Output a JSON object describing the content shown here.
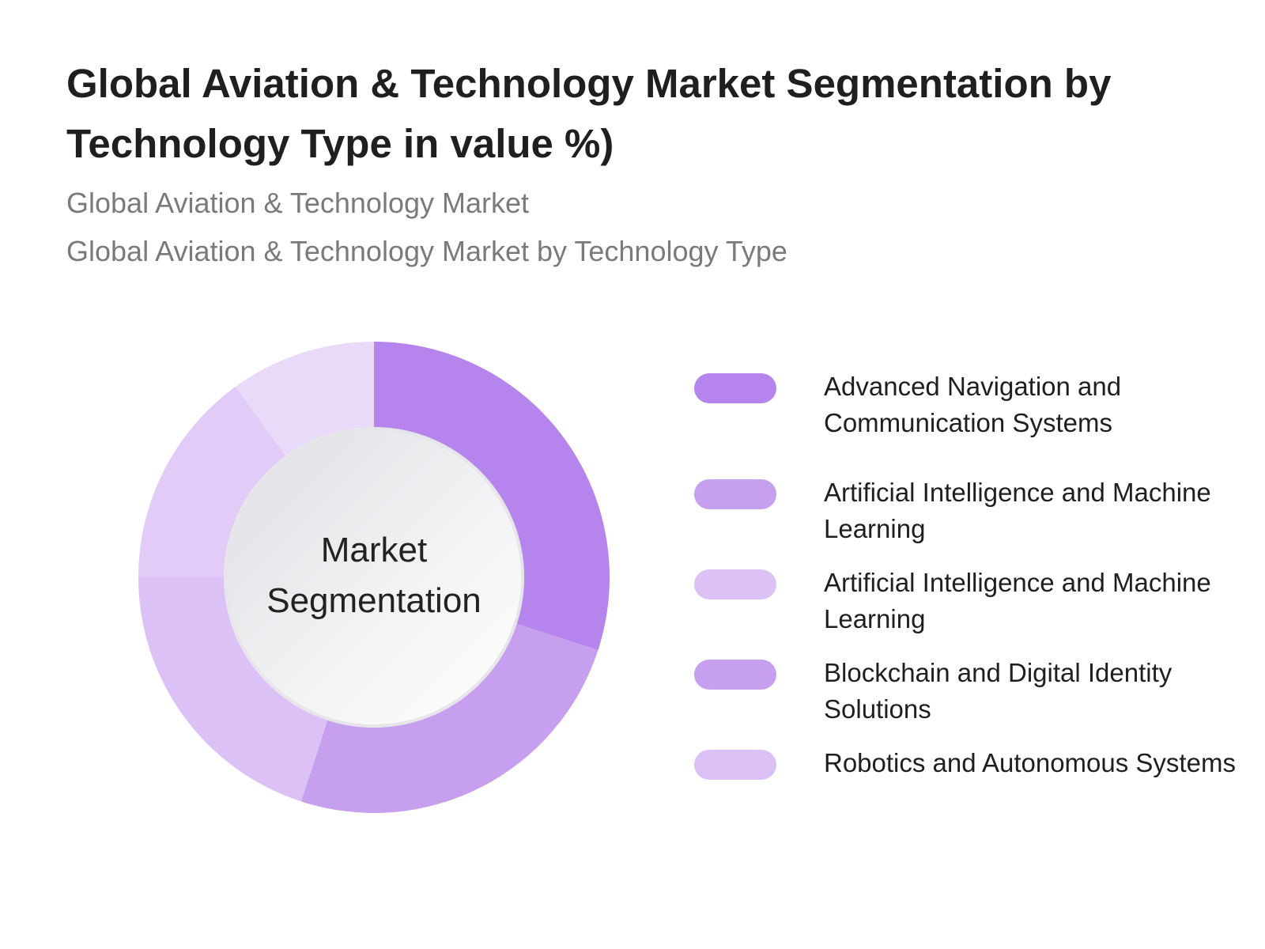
{
  "header": {
    "title": "Global Aviation & Technology Market Segmentation by Technology Type in value %)",
    "subtitle_1": "Global Aviation & Technology Market",
    "subtitle_2": "Global Aviation & Technology Market by Technology Type"
  },
  "chart_data": {
    "type": "pie",
    "center_label": "Market Segmentation",
    "categories": [
      "Advanced Navigation and Communication Systems",
      "Artificial Intelligence and Machine Learning",
      "Artificial Intelligence and Machine Learning",
      "Blockchain and Digital Identity Solutions",
      "Robotics and Autonomous Systems"
    ],
    "values": [
      30,
      25,
      20,
      15,
      10
    ],
    "colors": [
      "#b584ec",
      "#c69fef",
      "#dcc1f6",
      "#e2cbf7",
      "#eadaf9"
    ],
    "legend_colors": [
      "#b584ec",
      "#c69fef",
      "#dcc1f6",
      "#c69fef",
      "#dcc1f6"
    ],
    "legend_position": "right"
  }
}
